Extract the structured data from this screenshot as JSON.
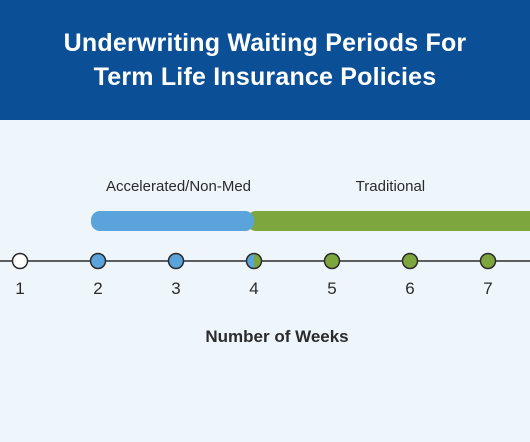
{
  "header": {
    "title_line1": "Underwriting Waiting Periods For",
    "title_line2": "Term Life Insurance Policies"
  },
  "colors": {
    "header_bg": "#0b4f97",
    "background": "#eef5fb",
    "accelerated": "#5aa3db",
    "traditional": "#7da63e",
    "axis": "#2b2b2b",
    "open_marker": "#ffffff"
  },
  "chart_data": {
    "type": "timeline",
    "xlabel": "Number of Weeks",
    "ticks": [
      1,
      2,
      3,
      4,
      5,
      6,
      7
    ],
    "ranges": [
      {
        "name": "Accelerated/Non-Med",
        "start": 2,
        "end": 4,
        "color": "#5aa3db"
      },
      {
        "name": "Traditional",
        "start": 4,
        "end": 8,
        "color": "#7da63e"
      }
    ],
    "markers": [
      {
        "week": 1,
        "type": "none"
      },
      {
        "week": 2,
        "type": "accelerated"
      },
      {
        "week": 3,
        "type": "accelerated"
      },
      {
        "week": 4,
        "type": "both"
      },
      {
        "week": 5,
        "type": "traditional"
      },
      {
        "week": 6,
        "type": "traditional"
      },
      {
        "week": 7,
        "type": "traditional"
      }
    ]
  }
}
